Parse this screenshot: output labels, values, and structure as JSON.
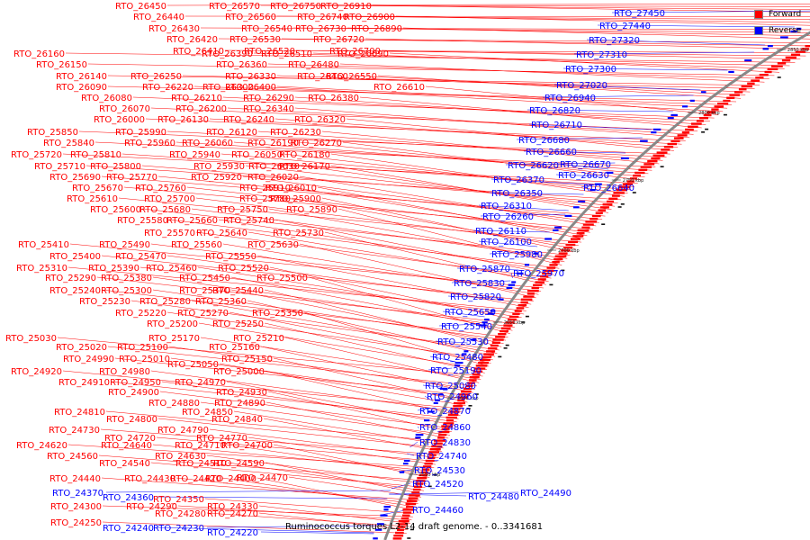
{
  "caption": "Ruminococcus torques L2-14 draft genome. - 0..3341681",
  "colors": {
    "forward": "#ff0000",
    "reverse": "#0000ff",
    "backbone": "#888888",
    "dark": "#111111"
  },
  "legend": [
    {
      "label": "Forward",
      "color": "#ff0000"
    },
    {
      "label": "Reverse",
      "color": "#0000ff"
    }
  ],
  "ticks": [
    "2850 kbp",
    "2800 kbp",
    "2750 kbp",
    "2700 kbp",
    "2650 kbp",
    "2600 kbp",
    "2550 kbp"
  ],
  "forward_labels": [
    "RTO_26450",
    "RTO_26570",
    "RTO_26750",
    "RTO_26910",
    "RTO_26440",
    "RTO_26560",
    "RTO_26740",
    "RTO_26900",
    "RTO_26430",
    "RTO_26540",
    "RTO_26730",
    "RTO_26890",
    "RTO_26420",
    "RTO_26530",
    "RTO_26720",
    "RTO_26410",
    "RTO_26520",
    "RTO_26700",
    "RTO_26160",
    "RTO_26390",
    "RTO_26510",
    "RTO_26690",
    "RTO_26150",
    "RTO_26360",
    "RTO_26480",
    "RTO_26140",
    "RTO_26250",
    "RTO_26330",
    "RTO_26460",
    "RTO_26550",
    "RTO_26090",
    "RTO_26220",
    "RTO_26400",
    "RTO_26300",
    "RTO_26610",
    "RTO_26080",
    "RTO_26210",
    "RTO_26290",
    "RTO_26380",
    "RTO_26070",
    "RTO_26200",
    "RTO_26340",
    "RTO_26000",
    "RTO_26130",
    "RTO_26240",
    "RTO_26320",
    "RTO_25850",
    "RTO_25990",
    "RTO_26120",
    "RTO_26230",
    "RTO_25840",
    "RTO_25960",
    "RTO_26060",
    "RTO_26190",
    "RTO_26270",
    "RTO_25720",
    "RTO_25810",
    "RTO_25940",
    "RTO_26050",
    "RTO_26180",
    "RTO_25710",
    "RTO_25800",
    "RTO_25930",
    "RTO_26030",
    "RTO_26170",
    "RTO_25690",
    "RTO_25770",
    "RTO_25920",
    "RTO_26020",
    "RTO_25670",
    "RTO_25760",
    "RTO_25910",
    "RTO_26010",
    "RTO_25610",
    "RTO_25700",
    "RTO_25780",
    "RTO_25900",
    "RTO_25600",
    "RTO_25680",
    "RTO_25750",
    "RTO_25890",
    "RTO_25580",
    "RTO_25660",
    "RTO_25740",
    "RTO_25570",
    "RTO_25640",
    "RTO_25730",
    "RTO_25410",
    "RTO_25490",
    "RTO_25560",
    "RTO_25630",
    "RTO_25400",
    "RTO_25470",
    "RTO_25550",
    "RTO_25310",
    "RTO_25390",
    "RTO_25460",
    "RTO_25520",
    "RTO_25290",
    "RTO_25380",
    "RTO_25450",
    "RTO_25500",
    "RTO_25240",
    "RTO_25300",
    "RTO_25370",
    "RTO_25440",
    "RTO_25230",
    "RTO_25280",
    "RTO_25360",
    "RTO_25220",
    "RTO_25270",
    "RTO_25350",
    "RTO_25200",
    "RTO_25250",
    "RTO_25030",
    "RTO_25170",
    "RTO_25210",
    "RTO_25020",
    "RTO_25100",
    "RTO_25160",
    "RTO_24990",
    "RTO_25010",
    "RTO_25150",
    "RTO_25050",
    "RTO_24920",
    "RTO_24980",
    "RTO_25000",
    "RTO_24910",
    "RTO_24950",
    "RTO_24970",
    "RTO_24900",
    "RTO_24930",
    "RTO_24880",
    "RTO_24890",
    "RTO_24810",
    "RTO_24850",
    "RTO_24800",
    "RTO_24840",
    "RTO_24730",
    "RTO_24790",
    "RTO_24720",
    "RTO_24770",
    "RTO_24620",
    "RTO_24640",
    "RTO_24710",
    "RTO_24700",
    "RTO_24560",
    "RTO_24630",
    "RTO_24540",
    "RTO_24510",
    "RTO_24590",
    "RTO_24470",
    "RTO_24440",
    "RTO_24430",
    "RTO_24420",
    "RTO_24400",
    "RTO_24350",
    "RTO_24300",
    "RTO_24290",
    "RTO_24330",
    "RTO_24280",
    "RTO_24270",
    "RTO_24250"
  ],
  "reverse_labels": [
    "RTO_27450",
    "RTO_27440",
    "RTO_27320",
    "RTO_27310",
    "RTO_27300",
    "RTO_27020",
    "RTO_26940",
    "RTO_26820",
    "RTO_26710",
    "RTO_26680",
    "RTO_26660",
    "RTO_26670",
    "RTO_26620",
    "RTO_26630",
    "RTO_26370",
    "RTO_26640",
    "RTO_26350",
    "RTO_26310",
    "RTO_26260",
    "RTO_26110",
    "RTO_26100",
    "RTO_25980",
    "RTO_25870",
    "RTO_25970",
    "RTO_25830",
    "RTO_25820",
    "RTO_25650",
    "RTO_25540",
    "RTO_25530",
    "RTO_25480",
    "RTO_25190",
    "RTO_25080",
    "RTO_24960",
    "RTO_24870",
    "RTO_24860",
    "RTO_24830",
    "RTO_24740",
    "RTO_24530",
    "RTO_24520",
    "RTO_24480",
    "RTO_24490",
    "RTO_24460",
    "RTO_24370",
    "RTO_24360",
    "RTO_24240",
    "RTO_24230",
    "RTO_24220"
  ]
}
